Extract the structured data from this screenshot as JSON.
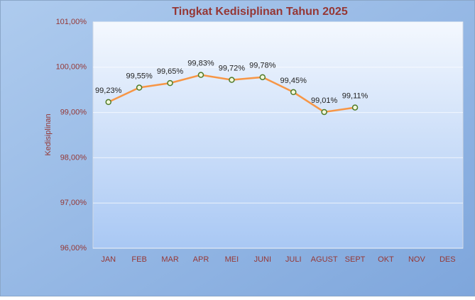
{
  "chart_data": {
    "type": "line",
    "title": "Tingkat Kedisiplinan Tahun 2025",
    "y_label": "Kedisiplinan",
    "categories": [
      "JAN",
      "FEB",
      "MAR",
      "APR",
      "MEI",
      "JUNI",
      "JULI",
      "AGUST",
      "SEPT",
      "OKT",
      "NOV",
      "DES"
    ],
    "values": [
      99.23,
      99.55,
      99.65,
      99.83,
      99.72,
      99.78,
      99.45,
      99.01,
      99.11,
      null,
      null,
      null
    ],
    "value_labels": [
      "99,23%",
      "99,55%",
      "99,65%",
      "99,83%",
      "99,72%",
      "99,78%",
      "99,45%",
      "99,01%",
      "99,11%",
      null,
      null,
      null
    ],
    "color": "#f79646",
    "marker_color": "#4f7a28",
    "ylim": [
      96,
      101
    ],
    "yticks": [
      {
        "value": 96,
        "label": "96,00%"
      },
      {
        "value": 97,
        "label": "97,00%"
      },
      {
        "value": 98,
        "label": "98,00%"
      },
      {
        "value": 99,
        "label": "99,00%"
      },
      {
        "value": 100,
        "label": "100,00%"
      },
      {
        "value": 101,
        "label": "101,00%"
      }
    ],
    "grid": true
  }
}
